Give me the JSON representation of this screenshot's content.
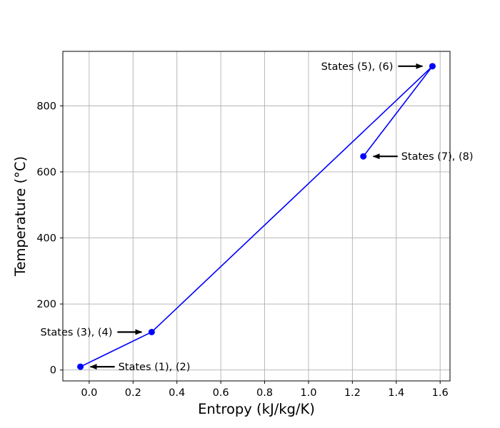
{
  "chart_data": {
    "type": "line",
    "title": "",
    "xlabel": "Entropy (kJ/kg/K)",
    "ylabel": "Temperature (°C)",
    "xlim": [
      -0.12,
      1.645
    ],
    "ylim": [
      -33,
      965
    ],
    "x_ticks": [
      0.0,
      0.2,
      0.4,
      0.6,
      0.8,
      1.0,
      1.2,
      1.4,
      1.6
    ],
    "x_tick_labels": [
      "0.0",
      "0.2",
      "0.4",
      "0.6",
      "0.8",
      "1.0",
      "1.2",
      "1.4",
      "1.6"
    ],
    "y_ticks": [
      0,
      200,
      400,
      600,
      800
    ],
    "y_tick_labels": [
      "0",
      "200",
      "400",
      "600",
      "800"
    ],
    "grid": true,
    "legend": "none",
    "series": [
      {
        "color": "#0000ff",
        "marker": "circle",
        "x": [
          -0.04,
          0.285,
          1.565,
          1.25
        ],
        "y": [
          10,
          115,
          920,
          647
        ]
      }
    ],
    "annotations": [
      {
        "text": "States (1), (2)",
        "x": -0.04,
        "y": 10,
        "side": "right"
      },
      {
        "text": "States (3), (4)",
        "x": 0.285,
        "y": 115,
        "side": "left"
      },
      {
        "text": "States (5), (6)",
        "x": 1.565,
        "y": 920,
        "side": "left"
      },
      {
        "text": "States (7), (8)",
        "x": 1.25,
        "y": 647,
        "side": "right"
      }
    ]
  }
}
